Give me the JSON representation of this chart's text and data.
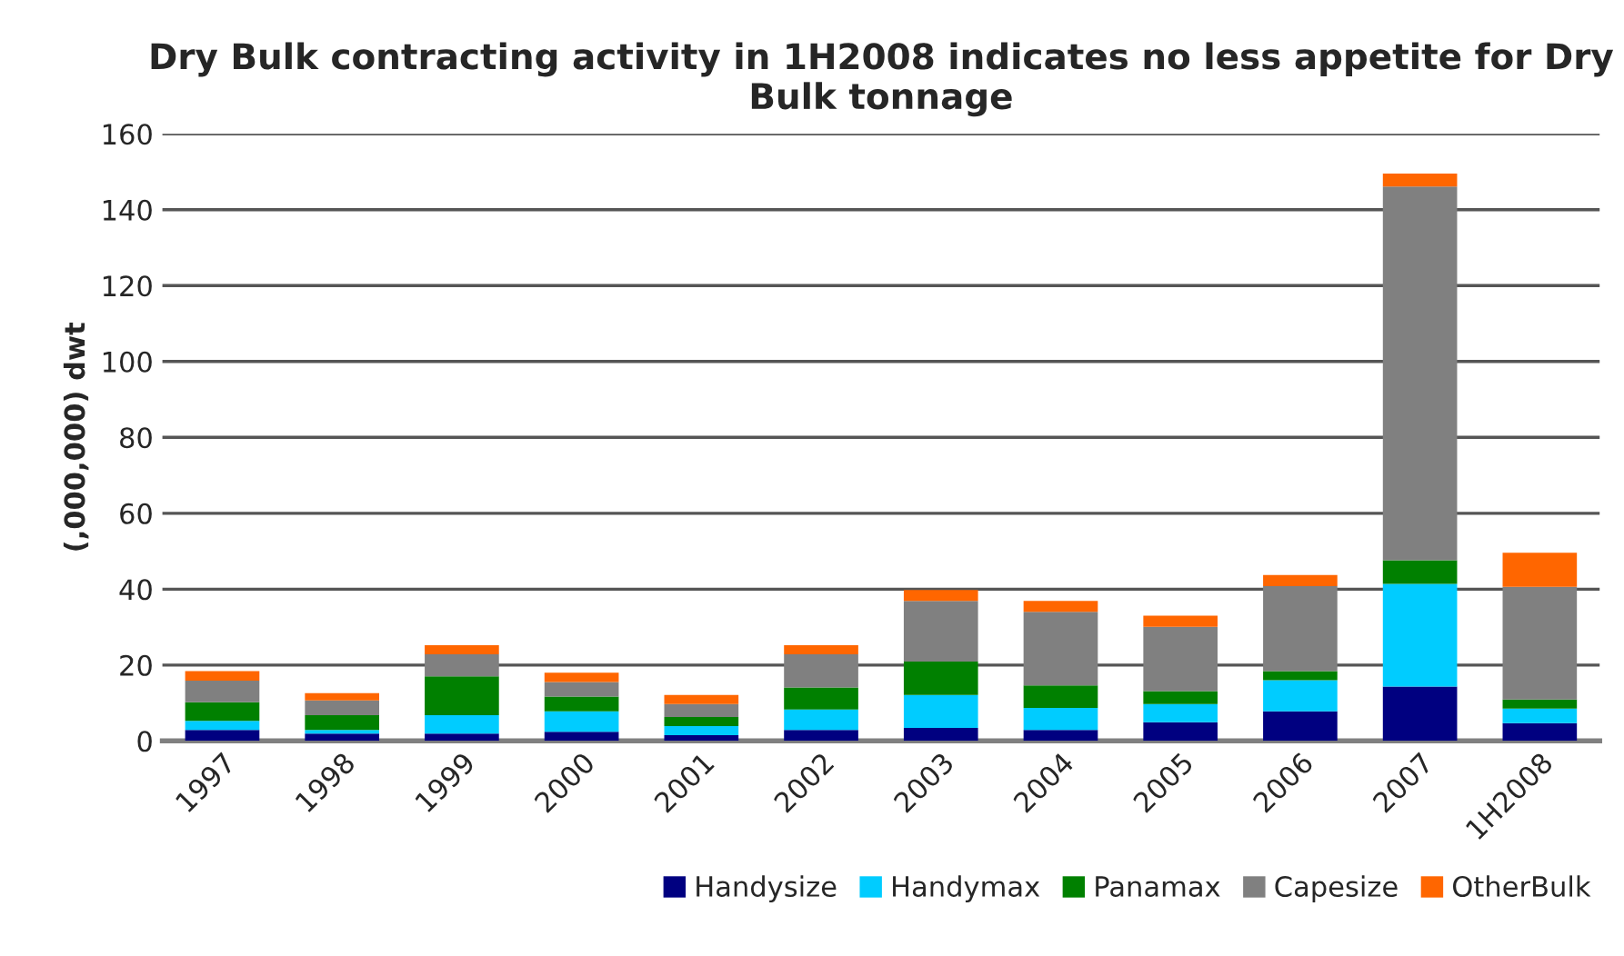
{
  "chart_data": {
    "type": "bar",
    "stacked": true,
    "title": "Dry Bulk contracting activity in 1H2008 indicates no less appetite for Dry Bulk tonnage",
    "ylabel": "(,000,000) dwt",
    "categories": [
      "1997",
      "1998",
      "1999",
      "2000",
      "2001",
      "2002",
      "2003",
      "2004",
      "2005",
      "2006",
      "2007",
      "1H2008"
    ],
    "series": [
      {
        "name": "Handysize",
        "color": "#000080",
        "values": [
          2.9,
          1.9,
          1.9,
          2.4,
          1.5,
          2.9,
          3.4,
          2.9,
          4.9,
          7.8,
          14.3,
          4.7
        ]
      },
      {
        "name": "Handymax",
        "color": "#00ccff",
        "values": [
          2.4,
          1.0,
          4.9,
          5.4,
          2.4,
          5.4,
          8.7,
          5.8,
          4.8,
          8.2,
          27.1,
          3.8
        ]
      },
      {
        "name": "Panamax",
        "color": "#008000",
        "values": [
          4.9,
          3.9,
          10.2,
          3.9,
          2.4,
          5.8,
          8.8,
          5.9,
          3.4,
          2.4,
          6.2,
          2.4
        ]
      },
      {
        "name": "Capesize",
        "color": "#808080",
        "values": [
          5.7,
          3.9,
          5.8,
          3.8,
          3.4,
          8.7,
          16.0,
          19.4,
          17.0,
          22.4,
          98.5,
          29.7
        ]
      },
      {
        "name": "OtherBulk",
        "color": "#ff6600",
        "values": [
          2.5,
          1.9,
          2.4,
          2.5,
          2.4,
          2.4,
          2.9,
          2.9,
          2.9,
          2.9,
          3.4,
          9.0
        ]
      }
    ],
    "ylim": [
      0,
      160
    ],
    "yticks": [
      0,
      20,
      40,
      60,
      80,
      100,
      120,
      140,
      160
    ],
    "grid": "y",
    "legend": "bottom right"
  }
}
